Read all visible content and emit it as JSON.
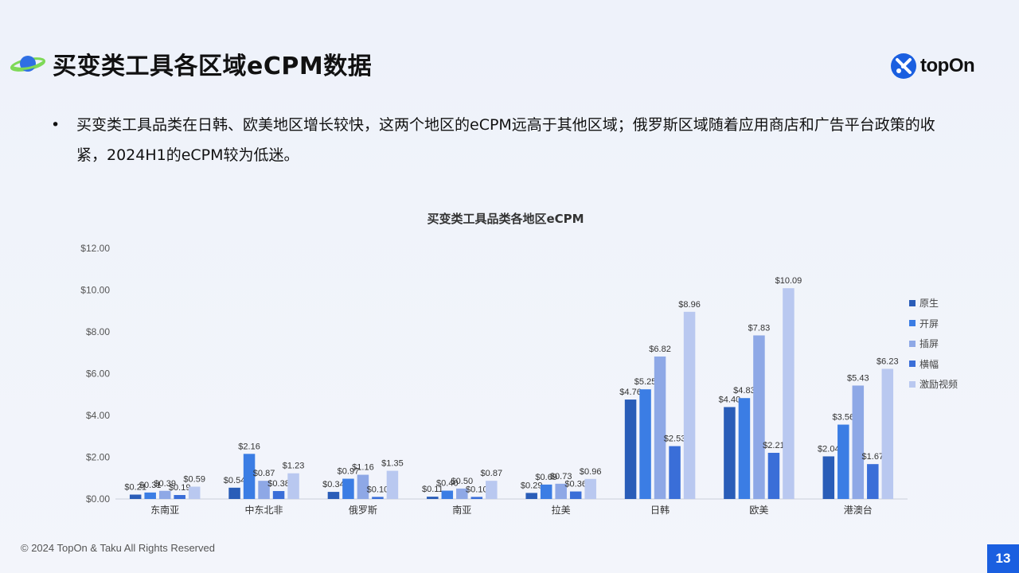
{
  "header": {
    "title": "买变类工具各区域eCPM数据",
    "logo_text": "topOn"
  },
  "bullet": {
    "symbol": "•",
    "text": "买变类工具品类在日韩、欧美地区增长较快，这两个地区的eCPM远高于其他区域；俄罗斯区域随着应用商店和广告平台政策的收紧，2024H1的eCPM较为低迷。"
  },
  "footer": {
    "copyright": "© 2024 TopOn & Taku All Rights Reserved",
    "page_number": "13"
  },
  "colors": {
    "accent": "#1a5fe0",
    "series": [
      "#2a5db8",
      "#3b7de4",
      "#8ea8e6",
      "#3a6ed8",
      "#b9c8f0"
    ]
  },
  "chart_data": {
    "type": "bar",
    "title": "买变类工具品类各地区eCPM",
    "categories": [
      "东南亚",
      "中东北非",
      "俄罗斯",
      "南亚",
      "拉美",
      "日韩",
      "欧美",
      "港澳台"
    ],
    "series": [
      {
        "name": "原生",
        "values": [
          0.21,
          0.54,
          0.34,
          0.11,
          0.29,
          4.76,
          4.4,
          2.04
        ]
      },
      {
        "name": "开屏",
        "values": [
          0.31,
          2.16,
          0.97,
          0.4,
          0.69,
          5.25,
          4.83,
          3.56
        ]
      },
      {
        "name": "插屏",
        "values": [
          0.39,
          0.87,
          1.16,
          0.5,
          0.73,
          6.82,
          7.83,
          5.43
        ]
      },
      {
        "name": "横幅",
        "values": [
          0.19,
          0.38,
          0.1,
          0.1,
          0.36,
          2.53,
          2.21,
          1.67
        ]
      },
      {
        "name": "激励视频",
        "values": [
          0.59,
          1.23,
          1.35,
          0.87,
          0.96,
          8.96,
          10.09,
          6.23
        ]
      }
    ],
    "data_labels": [
      [
        "$0.21",
        "$0.31",
        "$0.39",
        "$0.19",
        "$0.59"
      ],
      [
        "$0.54",
        "$2.16",
        "$0.87",
        "$0.38",
        "$1.23"
      ],
      [
        "$0.34",
        "$0.97",
        "$1.16",
        "$0.10",
        "$1.35"
      ],
      [
        "$0.11",
        "$0.40",
        "$0.50",
        "$0.10",
        "$0.87"
      ],
      [
        "$0.29",
        "$0.69",
        "$0.73",
        "$0.36",
        "$0.96"
      ],
      [
        "$4.76",
        "$5.25",
        "$6.82",
        "$2.53",
        "$8.96"
      ],
      [
        "$4.40",
        "$4.83",
        "$7.83",
        "$2.21",
        "$10.09"
      ],
      [
        "$2.04",
        "$3.56",
        "$5.43",
        "$1.67",
        "$6.23"
      ]
    ],
    "y_ticks": [
      "$0.00",
      "$2.00",
      "$4.00",
      "$6.00",
      "$8.00",
      "$10.00",
      "$12.00"
    ],
    "ylim": [
      0,
      12
    ],
    "grid": false,
    "legend": "right"
  }
}
